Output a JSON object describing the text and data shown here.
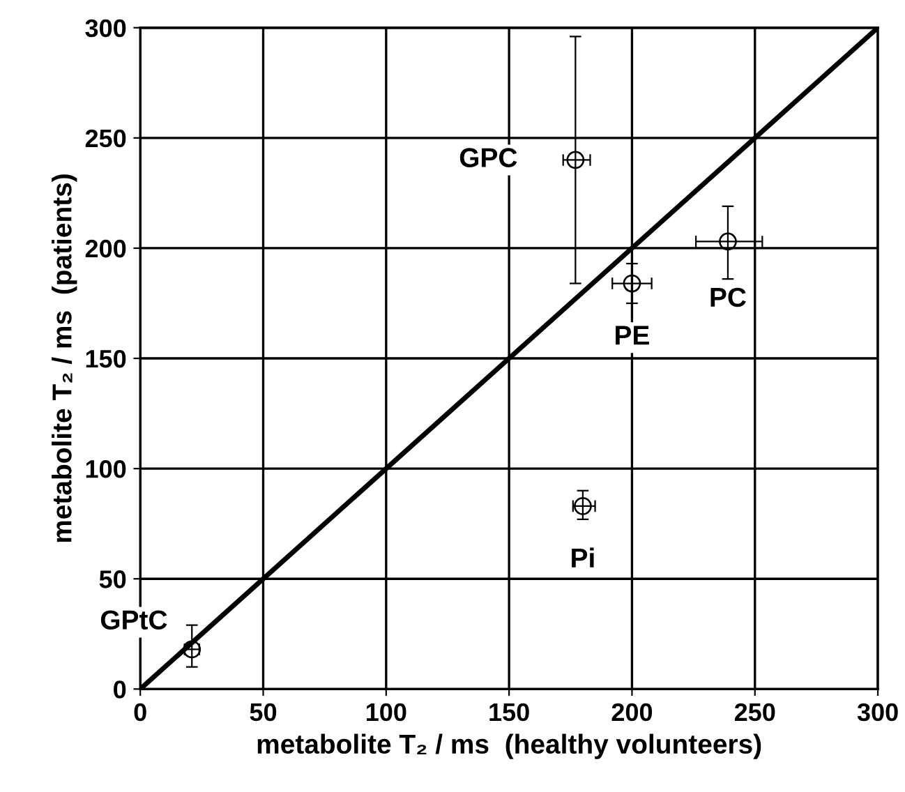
{
  "chart_data": {
    "type": "scatter",
    "xlabel": "metabolite T₂ / ms  (healthy volunteers)",
    "ylabel": "metabolite T₂ / ms  (patients)",
    "xlim": [
      0,
      300
    ],
    "ylim": [
      0,
      300
    ],
    "xticks": [
      0,
      50,
      100,
      150,
      200,
      250,
      300
    ],
    "yticks": [
      0,
      50,
      100,
      150,
      200,
      250,
      300
    ],
    "grid": true,
    "marker": "circle",
    "series": [
      {
        "color": "#000000",
        "x": [
          21,
          177,
          200,
          239,
          180
        ],
        "values": [
          18,
          240,
          184,
          203,
          83
        ],
        "errors": [
          [
            10,
            29
          ],
          [
            184,
            296
          ],
          [
            175,
            193
          ],
          [
            186,
            219
          ],
          [
            77,
            90
          ]
        ],
        "xerrors": [
          [
            18,
            24
          ],
          [
            172,
            183
          ],
          [
            192,
            208
          ],
          [
            226,
            253
          ],
          [
            176,
            185
          ]
        ]
      },
      {
        "type": "line",
        "color": "#000000",
        "x": [
          0,
          300
        ],
        "values": [
          0,
          300
        ],
        "marker": "none",
        "line_style": "solid"
      }
    ],
    "annotations": [
      {
        "text": "GPtC",
        "x": 21,
        "y": 18
      },
      {
        "text": "GPC",
        "x": 177,
        "y": 240
      },
      {
        "text": "PE",
        "x": 200,
        "y": 184
      },
      {
        "text": "PC",
        "x": 239,
        "y": 203
      },
      {
        "text": "Pi",
        "x": 180,
        "y": 83
      }
    ]
  }
}
